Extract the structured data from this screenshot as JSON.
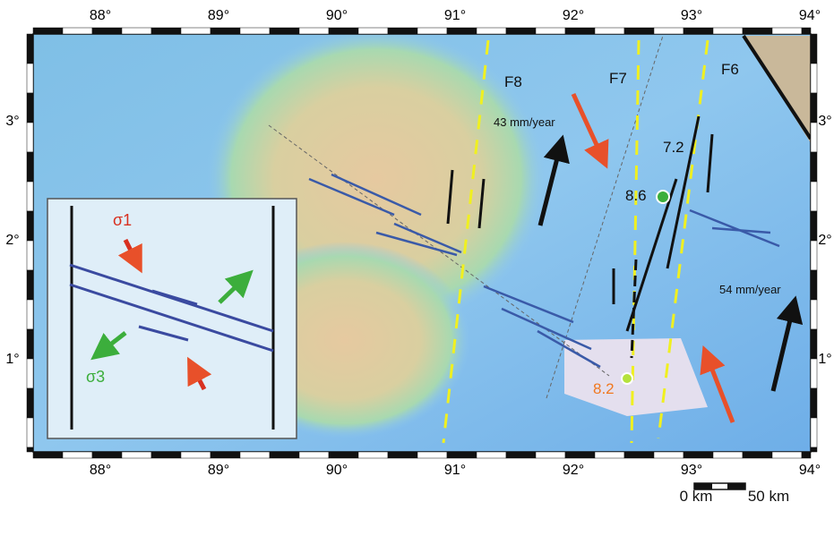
{
  "map": {
    "lon_labels": [
      "88°",
      "89°",
      "90°",
      "91°",
      "92°",
      "93°",
      "94°"
    ],
    "lat_labels": [
      "3°",
      "2°",
      "1°"
    ],
    "fault_labels": [
      "F8",
      "F7",
      "F6"
    ],
    "rate_labels": [
      "43 mm/year",
      "54 mm/year"
    ],
    "magnitude_labels": [
      "7.2",
      "8.6",
      "8.2"
    ],
    "inset_labels": [
      "σ1",
      "σ3"
    ],
    "scale_labels": [
      "0 km",
      "50 km"
    ]
  }
}
